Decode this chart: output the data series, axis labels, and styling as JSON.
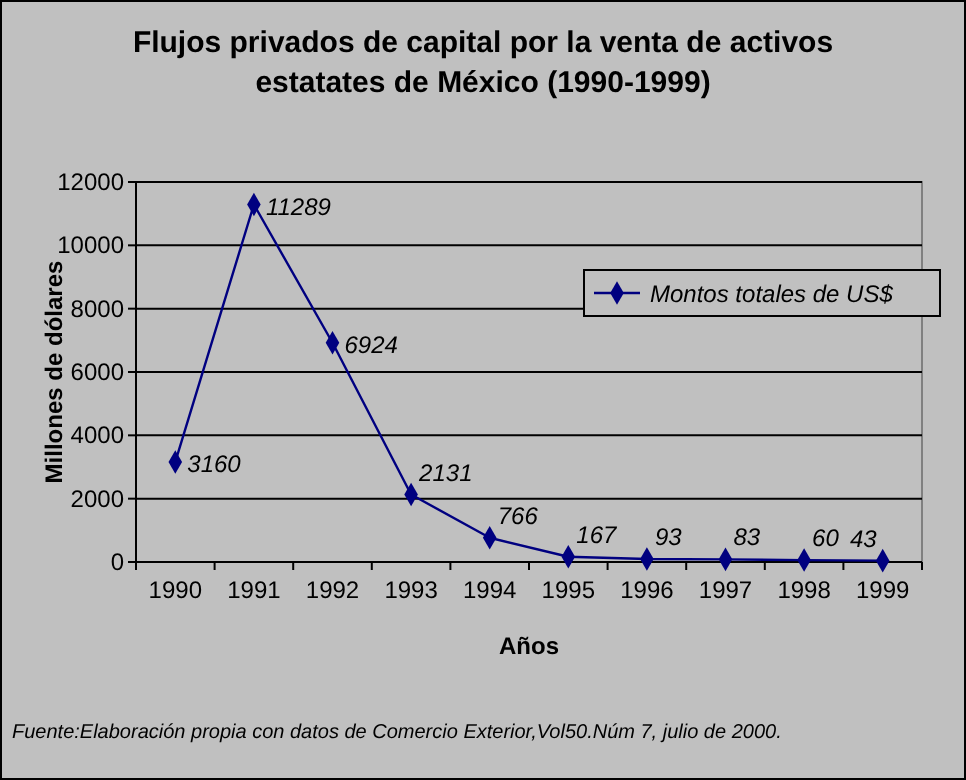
{
  "chart_data": {
    "type": "line",
    "title": "Flujos privados de capital por la venta de activos estatates de México (1990-1999)",
    "xlabel": "Años",
    "ylabel": "Millones de dólares",
    "categories": [
      "1990",
      "1991",
      "1992",
      "1993",
      "1994",
      "1995",
      "1996",
      "1997",
      "1998",
      "1999"
    ],
    "series": [
      {
        "name": "Montos totales de US$",
        "color": "#000080",
        "values": [
          3160,
          11289,
          6924,
          2131,
          766,
          167,
          93,
          83,
          60,
          43
        ]
      }
    ],
    "ylim": [
      0,
      12000
    ],
    "yticks": [
      0,
      2000,
      4000,
      6000,
      8000,
      10000,
      12000
    ],
    "grid": "y",
    "legend": "right",
    "marker": "diamond",
    "line_style": "solid",
    "data_labels": true,
    "annotations": [
      "Fuente:Elaboración propia con datos de Comercio Exterior,Vol50.Núm 7, julio de 2000."
    ]
  }
}
